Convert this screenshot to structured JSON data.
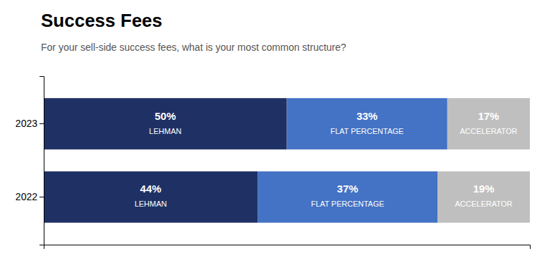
{
  "chart_data": {
    "type": "bar",
    "orientation": "horizontal",
    "stacked": true,
    "title": "Success Fees",
    "subtitle": "For your sell-side success fees, what is your most common structure?",
    "categories": [
      "2023",
      "2022"
    ],
    "series": [
      {
        "name": "LEHMAN",
        "color": "#1f3164",
        "values": [
          50,
          44
        ],
        "value_labels": [
          "50%",
          "44%"
        ]
      },
      {
        "name": "FLAT PERCENTAGE",
        "color": "#4472c4",
        "values": [
          33,
          37
        ],
        "value_labels": [
          "33%",
          "37%"
        ]
      },
      {
        "name": "ACCELERATOR",
        "color": "#bfbfbf",
        "values": [
          17,
          19
        ],
        "value_labels": [
          "17%",
          "19%"
        ]
      }
    ],
    "xlim": [
      0,
      100
    ],
    "data_labels": true,
    "tick_labels": "y",
    "grid": false
  }
}
